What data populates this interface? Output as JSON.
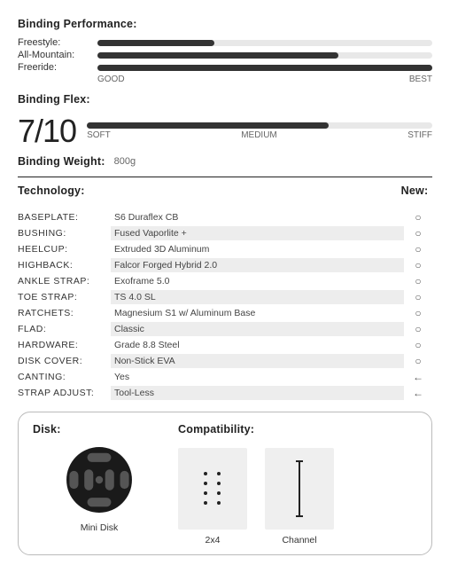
{
  "performance": {
    "title": "Binding Performance:",
    "rows": [
      {
        "label": "Freestyle:",
        "pct": 35
      },
      {
        "label": "All-Mountain:",
        "pct": 72
      },
      {
        "label": "Freeride:",
        "pct": 100
      }
    ],
    "scale_low": "GOOD",
    "scale_high": "BEST"
  },
  "flex": {
    "title": "Binding Flex:",
    "score": "7/10",
    "pct": 70,
    "scale_low": "SOFT",
    "scale_mid": "MEDIUM",
    "scale_high": "STIFF"
  },
  "weight": {
    "title": "Binding Weight:",
    "value": "800g"
  },
  "tech": {
    "title": "Technology:",
    "new_title": "New:",
    "rows": [
      {
        "label": "BASEPLATE:",
        "value": "S6 Duraflex CB",
        "new": "○",
        "shade": false
      },
      {
        "label": "BUSHING:",
        "value": "Fused Vaporlite +",
        "new": "○",
        "shade": true
      },
      {
        "label": "HEELCUP:",
        "value": "Extruded 3D Aluminum",
        "new": "○",
        "shade": false
      },
      {
        "label": "HIGHBACK:",
        "value": "Falcor Forged Hybrid 2.0",
        "new": "○",
        "shade": true
      },
      {
        "label": "ANKLE STRAP:",
        "value": "Exoframe 5.0",
        "new": "○",
        "shade": false
      },
      {
        "label": "TOE STRAP:",
        "value": "TS 4.0 SL",
        "new": "○",
        "shade": true
      },
      {
        "label": "RATCHETS:",
        "value": "Magnesium S1 w/ Aluminum Base",
        "new": "○",
        "shade": false
      },
      {
        "label": "FLAD:",
        "value": "Classic",
        "new": "○",
        "shade": true
      },
      {
        "label": "HARDWARE:",
        "value": "Grade 8.8 Steel",
        "new": "○",
        "shade": false
      },
      {
        "label": "DISK COVER:",
        "value": "Non-Stick EVA",
        "new": "○",
        "shade": true
      },
      {
        "label": "CANTING:",
        "value": "Yes",
        "new": "←",
        "shade": false
      },
      {
        "label": "STRAP ADJUST:",
        "value": "Tool-Less",
        "new": "←",
        "shade": true
      }
    ]
  },
  "disk": {
    "title": "Disk:",
    "compat_title": "Compatibility:",
    "mini_label": "Mini Disk",
    "compat1_label": "2x4",
    "compat2_label": "Channel"
  },
  "style": {
    "bar_track": "#e8e8e8",
    "bar_fill": "#333333",
    "shade_bg": "#ededed"
  }
}
